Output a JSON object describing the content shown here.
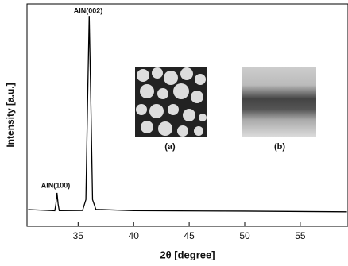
{
  "chart_data": {
    "type": "line",
    "x_label": "2θ [degree]",
    "y_label": "Intensity [a.u.]",
    "xlim": [
      30.4,
      59.3
    ],
    "xticks": [
      35,
      40,
      45,
      50,
      55
    ],
    "ylim": [
      0,
      100
    ],
    "series": [
      {
        "color": "#000000",
        "x": [
          30.5,
          32.0,
          32.9,
          33.0,
          33.1,
          33.2,
          33.3,
          35.4,
          35.7,
          35.85,
          36.0,
          36.15,
          36.3,
          36.6,
          40.0,
          50.0,
          59.2
        ],
        "values": [
          7.5,
          7.2,
          7.0,
          10.0,
          15.0,
          10.0,
          7.0,
          7.1,
          12.0,
          55.0,
          94.6,
          55.0,
          12.0,
          7.6,
          7.0,
          6.8,
          6.5
        ]
      }
    ],
    "annotations": [
      "AlN(002)",
      "AlN(100)",
      "(a)",
      "(b)"
    ]
  }
}
